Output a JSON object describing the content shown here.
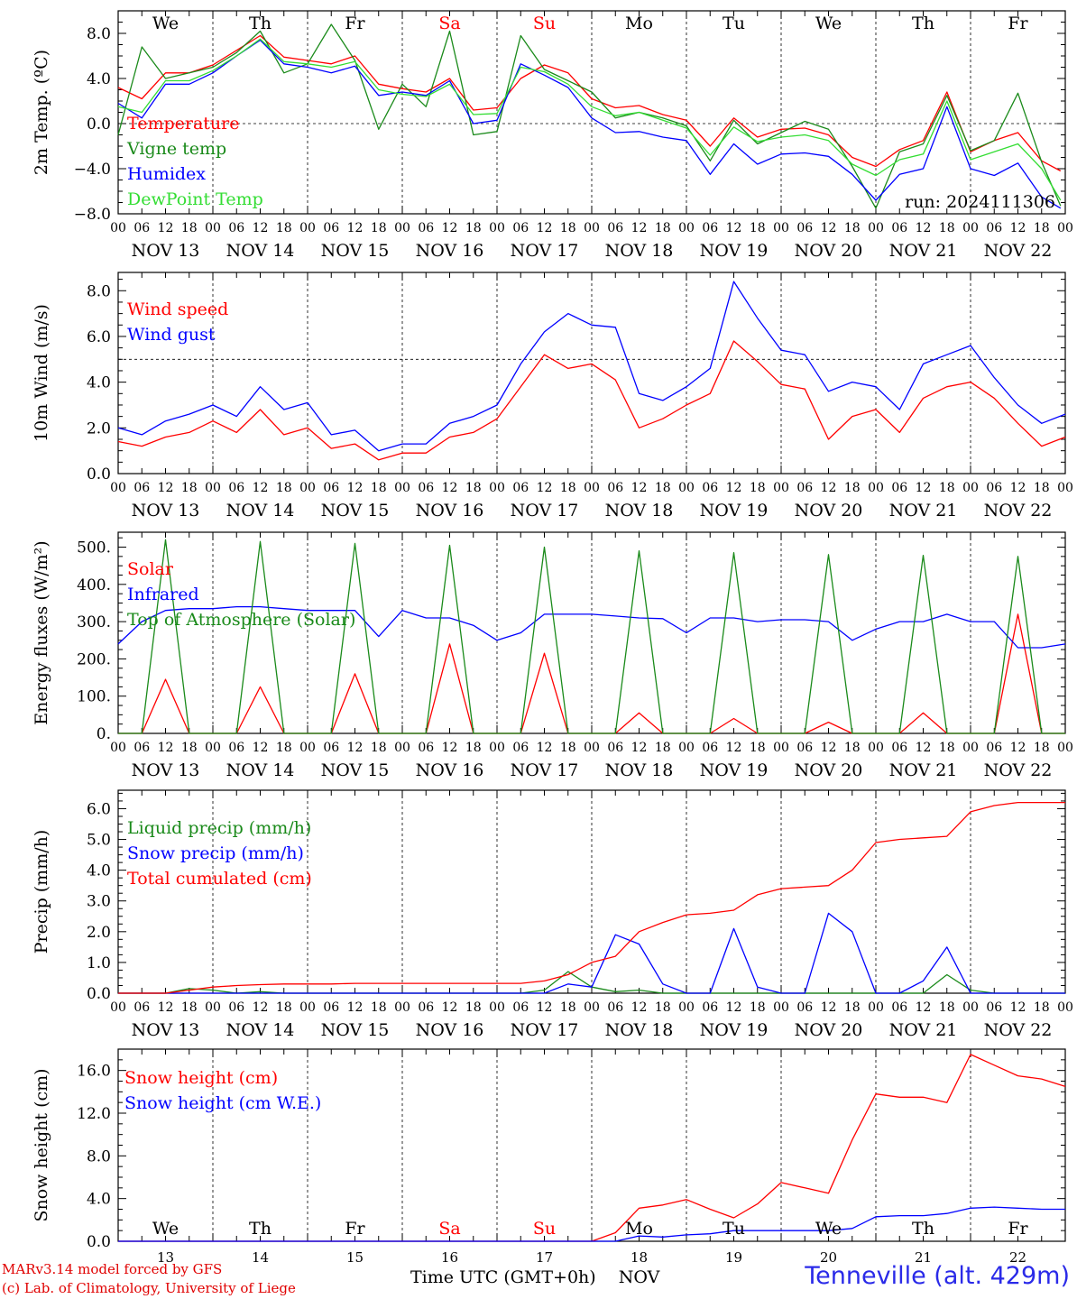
{
  "colors": {
    "red": "#ff0000",
    "green": "#1a8a1a",
    "blue": "#0000ff",
    "lightgreen": "#33dd33",
    "weekend": "#ff0000",
    "station": "#2a2ae8"
  },
  "shared_axis": {
    "hour_ticks": [
      "00",
      "06",
      "12",
      "18"
    ],
    "final_tick": "00",
    "dates": [
      "NOV 13",
      "NOV 14",
      "NOV 15",
      "NOV 16",
      "NOV 17",
      "NOV 18",
      "NOV 19",
      "NOV 20",
      "NOV 21",
      "NOV 22"
    ],
    "weekdays": [
      "We",
      "Th",
      "Fr",
      "Sa",
      "Su",
      "Mo",
      "Tu",
      "We",
      "Th",
      "Fr"
    ],
    "weekend_days": [
      "Sa",
      "Su"
    ],
    "day_numbers": [
      "13",
      "14",
      "15",
      "16",
      "17",
      "18",
      "19",
      "20",
      "21",
      "22"
    ],
    "month": "NOV"
  },
  "chart_data": [
    {
      "type": "line",
      "ylabel": "2m Temp. (ºC)",
      "ylim": [
        -8,
        10
      ],
      "yticks": [
        -8,
        -4,
        0,
        4,
        8
      ],
      "ytick_labels": [
        "−8.0",
        "−4.0",
        "0.0",
        "4.0",
        "8.0"
      ],
      "reference_line": 0,
      "annotation": "run: 2024111306",
      "show_weekdays": true,
      "x_days": [
        0,
        0.25,
        0.5,
        0.75,
        1,
        1.25,
        1.5,
        1.75,
        2,
        2.25,
        2.5,
        2.75,
        3,
        3.25,
        3.5,
        3.75,
        4,
        4.25,
        4.5,
        4.75,
        5,
        5.25,
        5.5,
        5.75,
        6,
        6.25,
        6.5,
        6.75,
        7,
        7.25,
        7.5,
        7.75,
        8,
        8.25,
        8.5,
        8.75,
        9,
        9.25,
        9.5,
        9.75,
        9.95
      ],
      "series": [
        {
          "name": "Temperature",
          "color": "red",
          "values": [
            3.2,
            2.2,
            4.5,
            4.5,
            5.2,
            6.5,
            7.8,
            5.9,
            5.6,
            5.3,
            6.0,
            3.5,
            3.1,
            2.8,
            4.0,
            1.2,
            1.4,
            4.0,
            5.2,
            4.5,
            2.2,
            1.4,
            1.6,
            0.8,
            0.3,
            -2.0,
            0.5,
            -1.2,
            -0.5,
            -0.4,
            -1.0,
            -3.0,
            -3.8,
            -2.3,
            -1.5,
            2.8,
            -2.5,
            -1.5,
            -0.8,
            -3.3,
            -4.2
          ]
        },
        {
          "name": "Vigne temp",
          "color": "green",
          "values": [
            -1.0,
            6.8,
            4.0,
            4.5,
            5.0,
            6.3,
            8.2,
            4.5,
            5.3,
            8.8,
            5.6,
            -0.5,
            3.5,
            1.5,
            8.2,
            -1.0,
            -0.7,
            7.8,
            4.8,
            3.8,
            2.8,
            0.5,
            1.0,
            0.5,
            -0.2,
            -3.3,
            0.3,
            -1.8,
            -0.8,
            0.2,
            -0.5,
            -3.8,
            -7.5,
            -2.5,
            -1.8,
            2.5,
            -2.4,
            -1.5,
            2.7,
            -3.4,
            -7.3
          ]
        },
        {
          "name": "Humidex",
          "color": "blue",
          "values": [
            1.8,
            0.5,
            3.5,
            3.5,
            4.5,
            6.0,
            7.4,
            5.3,
            5.0,
            4.5,
            5.1,
            2.5,
            2.8,
            2.5,
            3.8,
            0.0,
            0.3,
            5.3,
            4.3,
            3.2,
            0.5,
            -0.8,
            -0.7,
            -1.2,
            -1.5,
            -4.5,
            -1.8,
            -3.6,
            -2.7,
            -2.6,
            -2.9,
            -4.5,
            -6.8,
            -4.5,
            -4.0,
            1.5,
            -4.0,
            -4.6,
            -3.5,
            -6.5,
            -7.5
          ]
        },
        {
          "name": "DewPoint Temp",
          "color": "lightgreen",
          "values": [
            1.5,
            1.0,
            3.8,
            3.8,
            4.7,
            6.0,
            7.5,
            5.5,
            5.3,
            5.0,
            5.5,
            3.0,
            2.6,
            2.4,
            3.5,
            0.8,
            0.9,
            5.0,
            4.6,
            3.5,
            1.5,
            0.7,
            1.0,
            0.3,
            -0.4,
            -2.8,
            -0.3,
            -1.6,
            -1.2,
            -1.0,
            -1.5,
            -3.6,
            -4.6,
            -3.2,
            -2.7,
            2.0,
            -3.2,
            -2.5,
            -1.8,
            -4.0,
            -6.8
          ]
        }
      ]
    },
    {
      "type": "line",
      "ylabel": "10m Wind (m/s)",
      "ylim": [
        0,
        8.8
      ],
      "yticks": [
        0,
        2,
        4,
        6,
        8
      ],
      "ytick_labels": [
        "0.0",
        "2.0",
        "4.0",
        "6.0",
        "8.0"
      ],
      "reference_line": 5,
      "x_days": [
        0,
        0.25,
        0.5,
        0.75,
        1,
        1.25,
        1.5,
        1.75,
        2,
        2.25,
        2.5,
        2.75,
        3,
        3.25,
        3.5,
        3.75,
        4,
        4.25,
        4.5,
        4.75,
        5,
        5.25,
        5.5,
        5.75,
        6,
        6.25,
        6.5,
        6.75,
        7,
        7.25,
        7.5,
        7.75,
        8,
        8.25,
        8.5,
        8.75,
        9,
        9.25,
        9.5,
        9.75,
        10
      ],
      "series": [
        {
          "name": "Wind speed",
          "color": "red",
          "values": [
            1.4,
            1.2,
            1.6,
            1.8,
            2.3,
            1.8,
            2.8,
            1.7,
            2.0,
            1.1,
            1.3,
            0.6,
            0.9,
            0.9,
            1.6,
            1.8,
            2.4,
            3.8,
            5.2,
            4.6,
            4.8,
            4.1,
            2.0,
            2.4,
            3.0,
            3.5,
            5.8,
            4.9,
            3.9,
            3.7,
            1.5,
            2.5,
            2.8,
            1.8,
            3.3,
            3.8,
            4.0,
            3.3,
            2.2,
            1.2,
            1.6
          ]
        },
        {
          "name": "Wind gust",
          "color": "blue",
          "values": [
            2.0,
            1.7,
            2.3,
            2.6,
            3.0,
            2.5,
            3.8,
            2.8,
            3.1,
            1.7,
            1.9,
            1.0,
            1.3,
            1.3,
            2.2,
            2.5,
            3.0,
            4.8,
            6.2,
            7.0,
            6.5,
            6.4,
            3.5,
            3.2,
            3.8,
            4.6,
            8.4,
            6.8,
            5.4,
            5.2,
            3.6,
            4.0,
            3.8,
            2.8,
            4.8,
            5.2,
            5.6,
            4.2,
            3.0,
            2.2,
            2.6
          ]
        }
      ]
    },
    {
      "type": "line",
      "ylabel": "Energy fluxes (W/m²)",
      "ylim": [
        0,
        540
      ],
      "yticks": [
        0,
        100,
        200,
        300,
        400,
        500
      ],
      "ytick_labels": [
        "0.",
        "100.",
        "200.",
        "300.",
        "400.",
        "500."
      ],
      "x_days": [
        0,
        0.25,
        0.5,
        0.75,
        1,
        1.25,
        1.5,
        1.75,
        2,
        2.25,
        2.5,
        2.75,
        3,
        3.25,
        3.5,
        3.75,
        4,
        4.25,
        4.5,
        4.75,
        5,
        5.25,
        5.5,
        5.75,
        6,
        6.25,
        6.5,
        6.75,
        7,
        7.25,
        7.5,
        7.75,
        8,
        8.25,
        8.5,
        8.75,
        9,
        9.25,
        9.5,
        9.75,
        10
      ],
      "series": [
        {
          "name": "Solar",
          "color": "red",
          "values": [
            0,
            0,
            145,
            0,
            0,
            0,
            125,
            0,
            0,
            0,
            160,
            0,
            0,
            0,
            240,
            0,
            0,
            0,
            215,
            0,
            0,
            0,
            55,
            0,
            0,
            0,
            40,
            0,
            0,
            0,
            30,
            0,
            0,
            0,
            55,
            0,
            0,
            0,
            320,
            0,
            0
          ]
        },
        {
          "name": "Infrared",
          "color": "blue",
          "values": [
            240,
            300,
            330,
            335,
            335,
            340,
            340,
            335,
            330,
            330,
            330,
            260,
            330,
            310,
            310,
            290,
            250,
            270,
            320,
            320,
            320,
            315,
            310,
            308,
            270,
            310,
            310,
            300,
            305,
            305,
            300,
            250,
            280,
            300,
            300,
            320,
            300,
            300,
            230,
            230,
            240
          ]
        },
        {
          "name": "Top of Atmosphere (Solar)",
          "color": "green",
          "values": [
            0,
            0,
            520,
            0,
            0,
            0,
            515,
            0,
            0,
            0,
            510,
            0,
            0,
            0,
            505,
            0,
            0,
            0,
            500,
            0,
            0,
            0,
            490,
            0,
            0,
            0,
            485,
            0,
            0,
            0,
            480,
            0,
            0,
            0,
            478,
            0,
            0,
            0,
            475,
            0,
            0
          ]
        }
      ]
    },
    {
      "type": "line",
      "ylabel": "Precip (mm/h)",
      "ylim": [
        0,
        6.6
      ],
      "yticks": [
        0,
        1,
        2,
        3,
        4,
        5,
        6
      ],
      "ytick_labels": [
        "0.0",
        "1.0",
        "2.0",
        "3.0",
        "4.0",
        "5.0",
        "6.0"
      ],
      "x_days": [
        0,
        0.25,
        0.5,
        0.75,
        1,
        1.25,
        1.5,
        1.75,
        2,
        2.25,
        2.5,
        2.75,
        3,
        3.25,
        3.5,
        3.75,
        4,
        4.25,
        4.5,
        4.75,
        5,
        5.25,
        5.5,
        5.75,
        6,
        6.25,
        6.5,
        6.75,
        7,
        7.25,
        7.5,
        7.75,
        8,
        8.25,
        8.5,
        8.75,
        9,
        9.25,
        9.5,
        9.75,
        10
      ],
      "series": [
        {
          "name": "Liquid precip (mm/h)",
          "color": "green",
          "values": [
            0,
            0,
            0,
            0.15,
            0.1,
            0,
            0.05,
            0,
            0,
            0,
            0,
            0,
            0,
            0,
            0,
            0,
            0,
            0,
            0.1,
            0.7,
            0.2,
            0.05,
            0.1,
            0,
            0,
            0,
            0,
            0,
            0,
            0,
            0,
            0,
            0,
            0,
            0,
            0.6,
            0.1,
            0,
            0,
            0,
            0
          ]
        },
        {
          "name": "Snow precip (mm/h)",
          "color": "blue",
          "values": [
            0,
            0,
            0,
            0,
            0,
            0,
            0,
            0,
            0,
            0,
            0,
            0,
            0,
            0,
            0,
            0,
            0,
            0,
            0,
            0.3,
            0.2,
            1.9,
            1.6,
            0.3,
            0,
            0,
            2.1,
            0.2,
            0,
            0,
            2.6,
            2.0,
            0,
            0,
            0.4,
            1.5,
            0,
            0,
            0,
            0,
            0
          ]
        },
        {
          "name": "Total cumulated (cm)",
          "color": "red",
          "values": [
            0,
            0,
            0,
            0.1,
            0.2,
            0.25,
            0.28,
            0.3,
            0.3,
            0.3,
            0.32,
            0.32,
            0.32,
            0.32,
            0.32,
            0.32,
            0.32,
            0.32,
            0.4,
            0.6,
            1.0,
            1.2,
            2.0,
            2.3,
            2.55,
            2.6,
            2.7,
            3.2,
            3.4,
            3.45,
            3.5,
            4.0,
            4.9,
            5.0,
            5.05,
            5.1,
            5.9,
            6.1,
            6.2,
            6.2,
            6.2
          ]
        }
      ]
    },
    {
      "type": "line",
      "ylabel": "Snow height (cm)",
      "ylim": [
        0,
        18
      ],
      "yticks": [
        0,
        4,
        8,
        12,
        16
      ],
      "ytick_labels": [
        "0.0",
        "4.0",
        "8.0",
        "12.0",
        "16.0"
      ],
      "show_weekdays_inside": true,
      "show_day_numbers": true,
      "x_days": [
        0,
        0.25,
        0.5,
        0.75,
        1,
        1.25,
        1.5,
        1.75,
        2,
        2.25,
        2.5,
        2.75,
        3,
        3.25,
        3.5,
        3.75,
        4,
        4.25,
        4.5,
        4.75,
        5,
        5.25,
        5.5,
        5.75,
        6,
        6.25,
        6.5,
        6.75,
        7,
        7.25,
        7.5,
        7.75,
        8,
        8.25,
        8.5,
        8.75,
        9,
        9.25,
        9.5,
        9.75,
        10
      ],
      "series": [
        {
          "name": "Snow height (cm)",
          "color": "red",
          "values": [
            0,
            0,
            0,
            0,
            0,
            0,
            0,
            0,
            0,
            0,
            0,
            0,
            0,
            0,
            0,
            0,
            0,
            0,
            0,
            0,
            0,
            0.8,
            3.1,
            3.4,
            3.9,
            3.0,
            2.2,
            3.5,
            5.5,
            5.0,
            4.5,
            9.5,
            13.8,
            13.5,
            13.5,
            13.0,
            17.5,
            16.5,
            15.5,
            15.2,
            14.5
          ]
        },
        {
          "name": "Snow height (cm W.E.)",
          "color": "blue",
          "values": [
            0,
            0,
            0,
            0,
            0,
            0,
            0,
            0,
            0,
            0,
            0,
            0,
            0,
            0,
            0,
            0,
            0,
            0,
            0,
            0,
            0,
            0,
            0.5,
            0.4,
            0.6,
            0.7,
            1.0,
            1.0,
            1.0,
            1.0,
            1.0,
            1.2,
            2.3,
            2.4,
            2.4,
            2.6,
            3.1,
            3.2,
            3.1,
            3.0,
            3.0
          ]
        }
      ]
    }
  ],
  "footer": {
    "model_line": "MARv3.14 model forced by GFS",
    "credit_line": "(c) Lab. of Climatology, University of Liege",
    "xaxis_title": "Time UTC (GMT+0h)",
    "station": "Tenneville (alt. 429m)"
  }
}
